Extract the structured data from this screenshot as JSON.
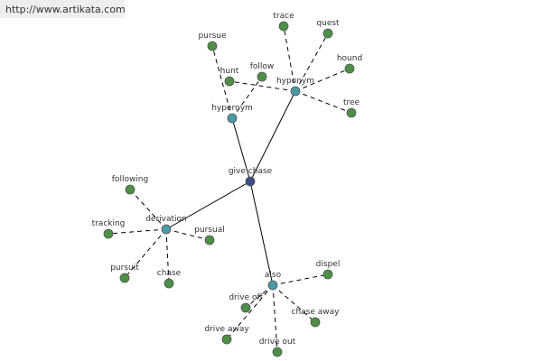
{
  "url": "http://www.artikata.com",
  "center": {
    "label": "give chase"
  },
  "groups": [
    {
      "label": "hypernym",
      "items": [
        "pursue",
        "follow"
      ]
    },
    {
      "label": "hyponym",
      "items": [
        "trace",
        "quest",
        "hound",
        "tree",
        "hunt"
      ]
    },
    {
      "label": "derivation",
      "items": [
        "following",
        "tracking",
        "pursuit",
        "chase",
        "pursual"
      ]
    },
    {
      "label": "also",
      "items": [
        "dispel",
        "drive off",
        "drive away",
        "drive out",
        "chase away"
      ]
    }
  ]
}
